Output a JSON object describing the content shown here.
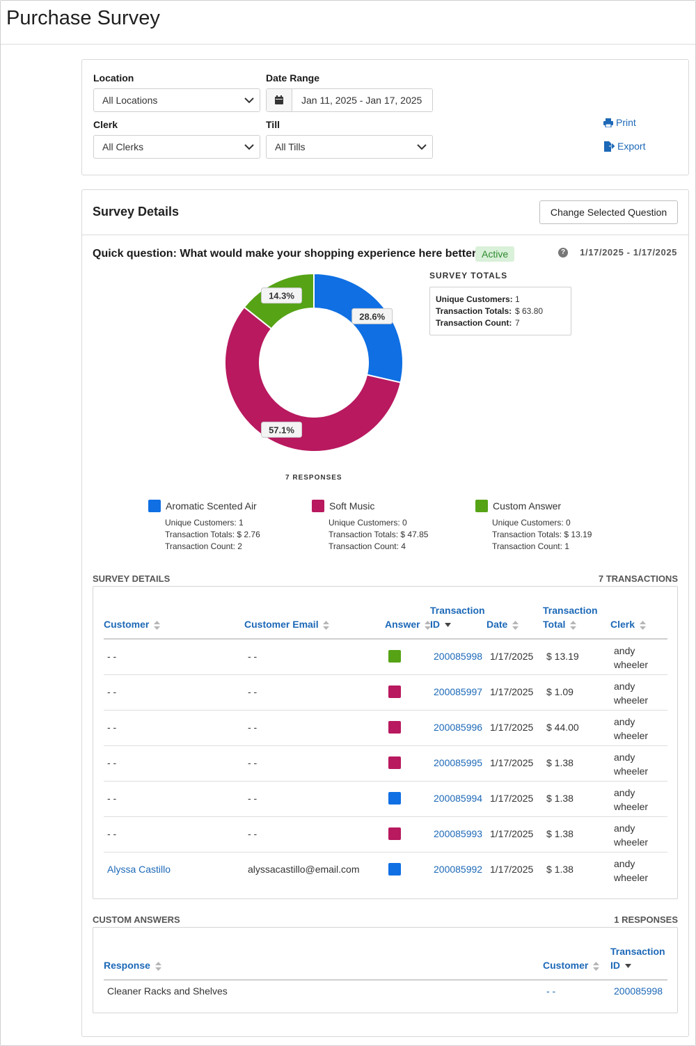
{
  "page": {
    "title": "Purchase Survey"
  },
  "filters": {
    "location_label": "Location",
    "location_value": "All Locations",
    "date_range_label": "Date Range",
    "date_range_value": "Jan 11, 2025 - Jan 17, 2025",
    "clerk_label": "Clerk",
    "clerk_value": "All Clerks",
    "till_label": "Till",
    "till_value": "All Tills",
    "print_label": "Print",
    "export_label": "Export"
  },
  "survey": {
    "panel_title": "Survey Details",
    "change_button": "Change Selected Question",
    "question": "Quick question: What would make your shopping experience here better:",
    "status": "Active",
    "date_range": "1/17/2025 - 1/17/2025",
    "totals_title": "SURVEY TOTALS",
    "totals": [
      {
        "key": "Unique Customers:",
        "value": "1"
      },
      {
        "key": "Transaction Totals:",
        "value": "$ 63.80"
      },
      {
        "key": "Transaction Count:",
        "value": "7"
      }
    ],
    "responses_label": "7 RESPONSES",
    "legend": [
      {
        "name": "Aromatic Scented Air",
        "color": "#0f6fe3",
        "stats": [
          "Unique Customers: 1",
          "Transaction Totals: $ 2.76",
          "Transaction Count: 2"
        ]
      },
      {
        "name": "Soft Music",
        "color": "#b8195f",
        "stats": [
          "Unique Customers: 0",
          "Transaction Totals: $ 47.85",
          "Transaction Count: 4"
        ]
      },
      {
        "name": "Custom Answer",
        "color": "#56a316",
        "stats": [
          "Unique Customers: 0",
          "Transaction Totals: $ 13.19",
          "Transaction Count: 1"
        ]
      }
    ]
  },
  "chart_data": {
    "type": "pie",
    "categories": [
      "Aromatic Scented Air",
      "Soft Music",
      "Custom Answer"
    ],
    "values": [
      28.6,
      57.1,
      14.3
    ],
    "labels": [
      "28.6%",
      "57.1%",
      "14.3%"
    ],
    "colors": [
      "#0f6fe3",
      "#b8195f",
      "#56a316"
    ],
    "donut": true
  },
  "details": {
    "section_label": "SURVEY DETAILS",
    "count_label": "7 TRANSACTIONS",
    "headers": {
      "customer": "Customer",
      "email": "Customer Email",
      "answer": "Answer",
      "txn_line1": "Transaction",
      "txn_line2": "ID",
      "date": "Date",
      "total_line1": "Transaction",
      "total_line2": "Total",
      "clerk": "Clerk"
    },
    "rows": [
      {
        "customer": "- -",
        "email": "- -",
        "answer_color": "#56a316",
        "txn": "200085998",
        "date": "1/17/2025",
        "total": "$ 13.19",
        "clerk1": "andy",
        "clerk2": "wheeler"
      },
      {
        "customer": "- -",
        "email": "- -",
        "answer_color": "#b8195f",
        "txn": "200085997",
        "date": "1/17/2025",
        "total": "$ 1.09",
        "clerk1": "andy",
        "clerk2": "wheeler"
      },
      {
        "customer": "- -",
        "email": "- -",
        "answer_color": "#b8195f",
        "txn": "200085996",
        "date": "1/17/2025",
        "total": "$ 44.00",
        "clerk1": "andy",
        "clerk2": "wheeler"
      },
      {
        "customer": "- -",
        "email": "- -",
        "answer_color": "#b8195f",
        "txn": "200085995",
        "date": "1/17/2025",
        "total": "$ 1.38",
        "clerk1": "andy",
        "clerk2": "wheeler"
      },
      {
        "customer": "- -",
        "email": "- -",
        "answer_color": "#0f6fe3",
        "txn": "200085994",
        "date": "1/17/2025",
        "total": "$ 1.38",
        "clerk1": "andy",
        "clerk2": "wheeler"
      },
      {
        "customer": "- -",
        "email": "- -",
        "answer_color": "#b8195f",
        "txn": "200085993",
        "date": "1/17/2025",
        "total": "$ 1.38",
        "clerk1": "andy",
        "clerk2": "wheeler"
      },
      {
        "customer": "Alyssa Castillo",
        "email": "alyssacastillo@email.com",
        "answer_color": "#0f6fe3",
        "txn": "200085992",
        "date": "1/17/2025",
        "total": "$ 1.38",
        "clerk1": "andy",
        "clerk2": "wheeler"
      }
    ]
  },
  "custom_answers": {
    "section_label": "CUSTOM ANSWERS",
    "count_label": "1 RESPONSES",
    "headers": {
      "response": "Response",
      "customer": "Customer",
      "txn_line1": "Transaction",
      "txn_line2": "ID"
    },
    "rows": [
      {
        "response": "Cleaner Racks and Shelves",
        "customer": "- -",
        "txn": "200085998"
      }
    ]
  },
  "icons": {
    "calendar": "calendar-icon",
    "print": "print-icon",
    "export": "export-icon",
    "help": "help-icon",
    "chevron": "chevron-down-icon",
    "sort": "sort-icon",
    "sort_desc": "sort-desc-icon"
  }
}
